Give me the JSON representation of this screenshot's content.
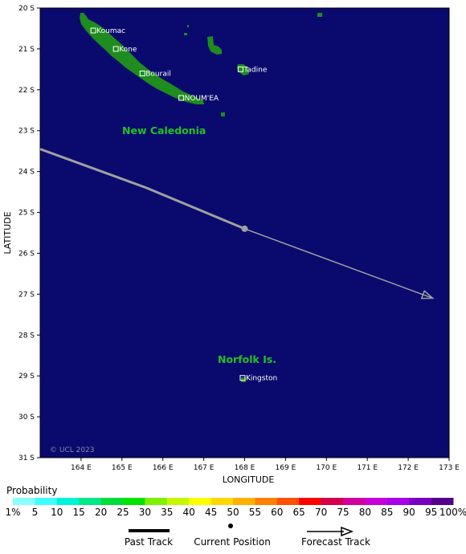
{
  "map": {
    "title_lat": "LATITUDE",
    "title_lon": "LONGITUDE",
    "copyright": "© UCL 2023",
    "lat_ticks": [
      "20 S",
      "21 S",
      "22 S",
      "23 S",
      "24 S",
      "25 S",
      "26 S",
      "27 S",
      "28 S",
      "29 S",
      "30 S",
      "31 S"
    ],
    "lon_ticks": [
      "164 E",
      "165 E",
      "166 E",
      "167 E",
      "168 E",
      "169 E",
      "170 E",
      "171 E",
      "172 E",
      "173 E"
    ],
    "regions": [
      {
        "name": "New Caledonia"
      },
      {
        "name": "Norfolk Is."
      }
    ],
    "places": [
      {
        "name": "Koumac",
        "lon": 164.3,
        "lat": -20.55
      },
      {
        "name": "Kone",
        "lon": 164.85,
        "lat": -21.0
      },
      {
        "name": "Bourail",
        "lon": 165.5,
        "lat": -21.6
      },
      {
        "name": "NOUM'EA",
        "lon": 166.45,
        "lat": -22.2
      },
      {
        "name": "Tadine",
        "lon": 167.9,
        "lat": -21.5
      },
      {
        "name": "Kingston",
        "lon": 167.95,
        "lat": -29.05
      }
    ],
    "track": {
      "past": [
        [
          163.0,
          -23.45
        ],
        [
          165.6,
          -24.4
        ],
        [
          168.0,
          -25.4
        ]
      ],
      "current": [
        168.0,
        -25.4
      ],
      "forecast_end": [
        172.6,
        -27.1
      ]
    },
    "colors": {
      "ocean": "#0a0a6e",
      "land": "#1e8c1e",
      "track": "#a0a0a0"
    }
  },
  "scale": {
    "title": "Probability",
    "labels": [
      "1%",
      "5",
      "10",
      "15",
      "20",
      "25",
      "30",
      "35",
      "40",
      "45",
      "50",
      "55",
      "60",
      "65",
      "70",
      "75",
      "80",
      "85",
      "90",
      "95",
      "100%"
    ],
    "colors": [
      "#8cffff",
      "#40ffff",
      "#00f5d8",
      "#00e88a",
      "#00dd3a",
      "#00e400",
      "#7ef000",
      "#c6f700",
      "#ffff00",
      "#ffd700",
      "#ffb000",
      "#ff8000",
      "#ff4f00",
      "#ff0000",
      "#d4004a",
      "#d000a0",
      "#c800d8",
      "#a800e8",
      "#7a00c0",
      "#55008a"
    ]
  },
  "legend": {
    "past": "Past Track",
    "current": "Current Position",
    "forecast": "Forecast Track"
  }
}
